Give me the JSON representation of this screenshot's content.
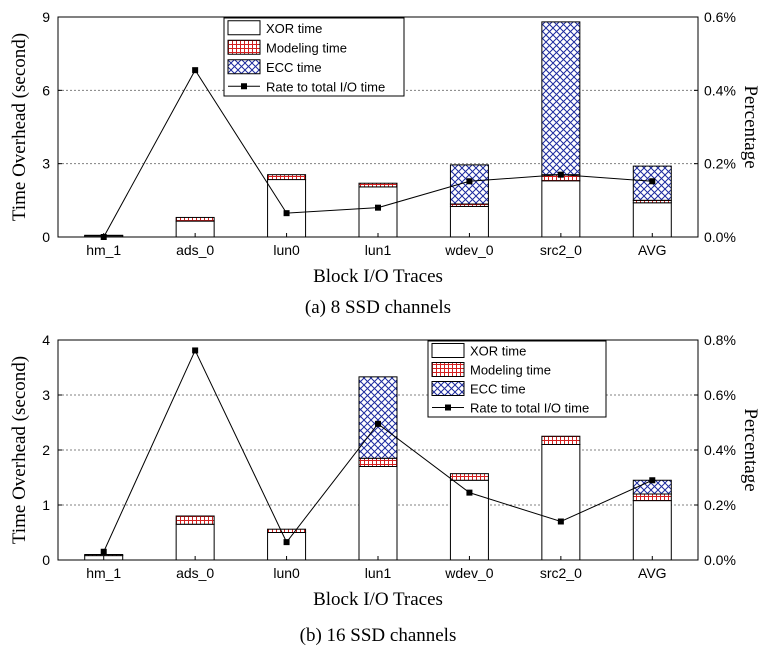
{
  "chart_data": [
    {
      "type": "bar",
      "subtype": "stacked-bar-with-line",
      "caption": "(a) 8 SSD channels",
      "xlabel": "Block I/O Traces",
      "ylabel": "Time Overhead (second)",
      "y2label": "Percentage",
      "categories": [
        "hm_1",
        "ads_0",
        "lun0",
        "lun1",
        "wdev_0",
        "src2_0",
        "AVG"
      ],
      "ylim": [
        0,
        9
      ],
      "yticks": [
        "0",
        "3",
        "6",
        "9"
      ],
      "y2lim": [
        0,
        0.6
      ],
      "y2ticks": [
        "0.0%",
        "0.2%",
        "0.4%",
        "0.6%"
      ],
      "grid": "horizontal dotted",
      "legend_position": "top-left",
      "series": [
        {
          "name": "XOR time",
          "kind": "bar",
          "pattern": "none",
          "values": [
            0.05,
            0.65,
            2.35,
            2.05,
            1.25,
            2.3,
            1.4
          ]
        },
        {
          "name": "Modeling time",
          "kind": "bar",
          "pattern": "red-grid",
          "values": [
            0.02,
            0.15,
            0.2,
            0.15,
            0.1,
            0.25,
            0.1
          ]
        },
        {
          "name": "ECC time",
          "kind": "bar",
          "pattern": "blue-crosshatch",
          "values": [
            0.0,
            0.0,
            0.0,
            0.0,
            1.6,
            6.25,
            1.4
          ]
        },
        {
          "name": "Rate to total I/O time",
          "kind": "line",
          "axis": "right",
          "values": [
            0.0,
            0.455,
            0.065,
            0.08,
            0.152,
            0.17,
            0.152
          ]
        }
      ]
    },
    {
      "type": "bar",
      "subtype": "stacked-bar-with-line",
      "caption": "(b) 16 SSD channels",
      "xlabel": "Block I/O Traces",
      "ylabel": "Time Overhead (second)",
      "y2label": "Percentage",
      "categories": [
        "hm_1",
        "ads_0",
        "lun0",
        "lun1",
        "wdev_0",
        "src2_0",
        "AVG"
      ],
      "ylim": [
        0,
        4
      ],
      "yticks": [
        "0",
        "1",
        "2",
        "3",
        "4"
      ],
      "y2lim": [
        0,
        0.8
      ],
      "y2ticks": [
        "0.0%",
        "0.2%",
        "0.4%",
        "0.6%",
        "0.8%"
      ],
      "grid": "horizontal dotted",
      "legend_position": "top-right",
      "series": [
        {
          "name": "XOR time",
          "kind": "bar",
          "pattern": "none",
          "values": [
            0.08,
            0.65,
            0.5,
            1.7,
            1.45,
            2.1,
            1.08
          ]
        },
        {
          "name": "Modeling time",
          "kind": "bar",
          "pattern": "red-grid",
          "values": [
            0.02,
            0.15,
            0.06,
            0.15,
            0.12,
            0.15,
            0.12
          ]
        },
        {
          "name": "ECC time",
          "kind": "bar",
          "pattern": "blue-crosshatch",
          "values": [
            0.0,
            0.0,
            0.0,
            1.48,
            0.0,
            0.0,
            0.25
          ]
        },
        {
          "name": "Rate to total I/O time",
          "kind": "line",
          "axis": "right",
          "values": [
            0.03,
            0.762,
            0.065,
            0.495,
            0.245,
            0.14,
            0.29
          ]
        }
      ]
    }
  ]
}
